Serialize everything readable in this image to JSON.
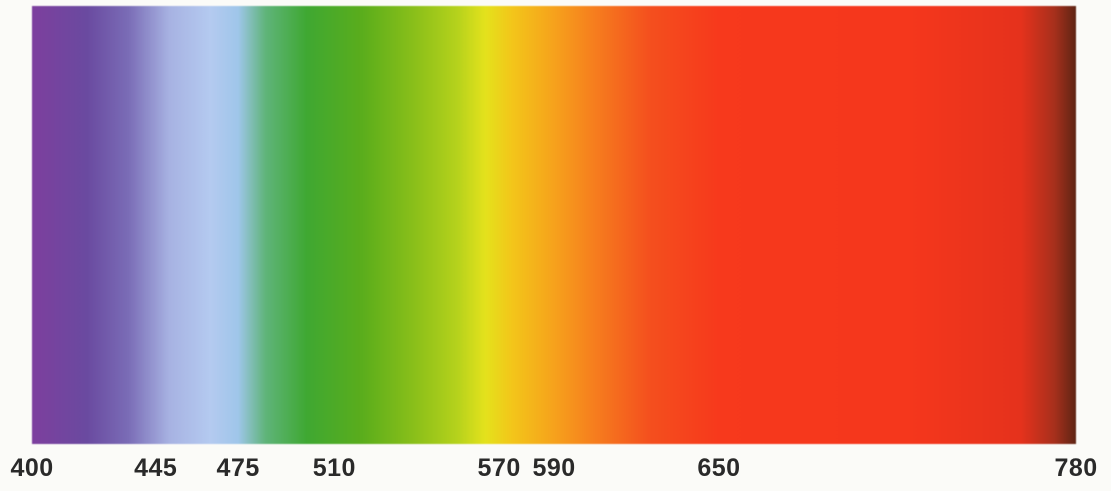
{
  "chart_data": {
    "type": "spectrum",
    "x_range": [
      400,
      780
    ],
    "ticks": [
      400,
      445,
      475,
      510,
      570,
      590,
      650,
      780
    ],
    "tick_labels": [
      "400",
      "445",
      "475",
      "510",
      "570",
      "590",
      "650",
      "780"
    ],
    "color_stops": [
      {
        "x": 400,
        "color": "#7d3f9e"
      },
      {
        "x": 420,
        "color": "#6a4aa0"
      },
      {
        "x": 435,
        "color": "#7a6cb6"
      },
      {
        "x": 450,
        "color": "#a7b2e2"
      },
      {
        "x": 465,
        "color": "#b4caf0"
      },
      {
        "x": 475,
        "color": "#9fc6ea"
      },
      {
        "x": 485,
        "color": "#5fb47a"
      },
      {
        "x": 500,
        "color": "#3fa832"
      },
      {
        "x": 520,
        "color": "#5aad1c"
      },
      {
        "x": 540,
        "color": "#8cc01a"
      },
      {
        "x": 555,
        "color": "#b6d21c"
      },
      {
        "x": 565,
        "color": "#e4e21c"
      },
      {
        "x": 575,
        "color": "#f3c51a"
      },
      {
        "x": 590,
        "color": "#f6a21c"
      },
      {
        "x": 605,
        "color": "#f67d1e"
      },
      {
        "x": 625,
        "color": "#f44f1e"
      },
      {
        "x": 650,
        "color": "#f7391c"
      },
      {
        "x": 720,
        "color": "#f5371c"
      },
      {
        "x": 760,
        "color": "#e5321c"
      },
      {
        "x": 772,
        "color": "#a8301c"
      },
      {
        "x": 780,
        "color": "#5e2414"
      }
    ]
  }
}
